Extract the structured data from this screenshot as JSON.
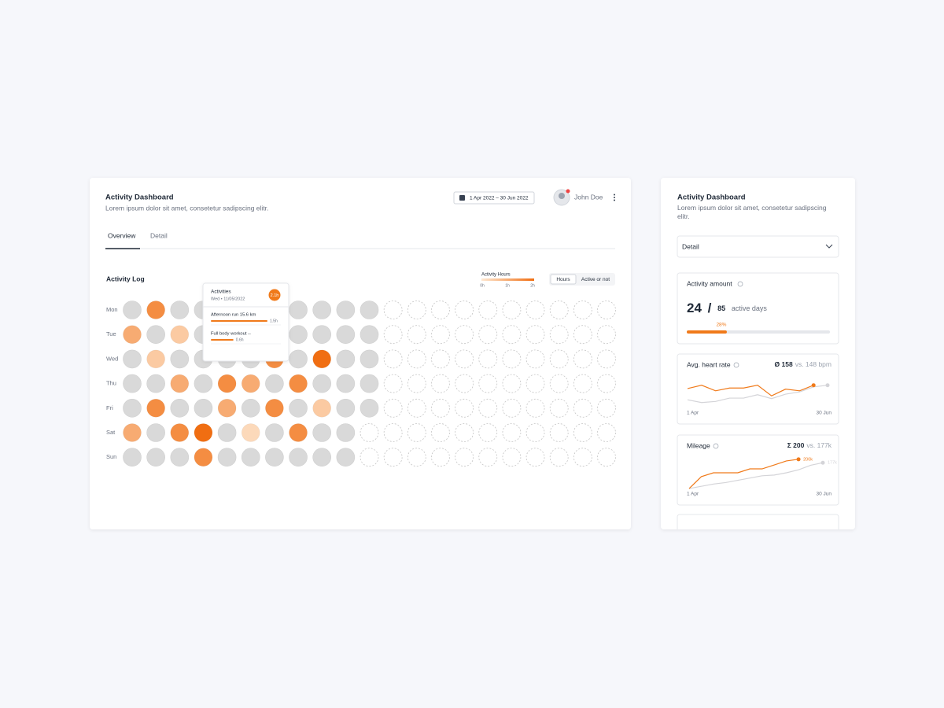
{
  "main": {
    "title": "Activity Dashboard",
    "subtitle": "Lorem ipsum dolor sit amet, consetetur sadipscing elitr.",
    "date_range": "1 Apr 2022 – 30 Jun 2022",
    "user": "John Doe",
    "tabs": [
      "Overview",
      "Detail"
    ],
    "activity_log": {
      "title": "Activity Log",
      "legend": {
        "title": "Activity Hours",
        "ticks": [
          {
            "value": 0,
            "label": "0h"
          },
          {
            "value": 1,
            "label": "1h"
          },
          {
            "value": 2,
            "label": "2h"
          }
        ]
      },
      "toggle": [
        "Hours",
        "Active or not"
      ],
      "days": [
        "Mon",
        "Tue",
        "Wed",
        "Thu",
        "Fri",
        "Sat",
        "Sun"
      ],
      "hours": [
        [
          0,
          1.5,
          0,
          0,
          0,
          0,
          0,
          0,
          0,
          0,
          0,
          null,
          null,
          null,
          null,
          null,
          null,
          null,
          null,
          null,
          null
        ],
        [
          1,
          0,
          0.5,
          0,
          0,
          0,
          0,
          0,
          0,
          0,
          0,
          null,
          null,
          null,
          null,
          null,
          null,
          null,
          null,
          null,
          null
        ],
        [
          0,
          0.5,
          0,
          0,
          0,
          0,
          1.5,
          0,
          2,
          0,
          0,
          null,
          null,
          null,
          null,
          null,
          null,
          null,
          null,
          null,
          null
        ],
        [
          0,
          0,
          1,
          0,
          1.5,
          1,
          0,
          1.5,
          0,
          0,
          0,
          null,
          null,
          null,
          null,
          null,
          null,
          null,
          null,
          null,
          null
        ],
        [
          0,
          1.5,
          0,
          0,
          1,
          0,
          1.5,
          0,
          0.5,
          0,
          0,
          null,
          null,
          null,
          null,
          null,
          null,
          null,
          null,
          null,
          null
        ],
        [
          1,
          0,
          1.5,
          2,
          0,
          0.25,
          0,
          1.5,
          0,
          0,
          null,
          null,
          null,
          null,
          null,
          null,
          null,
          null,
          null,
          null,
          null
        ],
        [
          0,
          0,
          0,
          1.5,
          0,
          0,
          0,
          0,
          0,
          0,
          null,
          null,
          null,
          null,
          null,
          null,
          null,
          null,
          null,
          null,
          null
        ]
      ],
      "tooltip": {
        "title": "Activities",
        "date": "Wed • 11/05/2022",
        "total": 2.1,
        "total_label": "2.1h",
        "items": [
          {
            "name": "Afternoon run 15.6 km",
            "hours": 1.5,
            "label": "1.5h"
          },
          {
            "name": "Full body workout --",
            "hours": 0.6,
            "label": "0.6h"
          }
        ]
      }
    }
  },
  "right": {
    "title": "Activity Dashboard",
    "subtitle": "Lorem ipsum dolor sit amet, consetetur sadipscing elitr.",
    "select": "Detail",
    "activity_amount": {
      "title": "Activity amount",
      "value": 24,
      "separator": "/",
      "total": 85,
      "unit": "active days",
      "percent": 28,
      "percent_label": "28%"
    },
    "heart_rate": {
      "title": "Avg. heart rate",
      "value_label": "Ø 158",
      "compare_label": "vs. 148 bpm",
      "x_start": "1 Apr",
      "x_end": "30 Jun",
      "ylim": [
        130,
        175
      ],
      "series": [
        {
          "color": "#f07a1a",
          "values": [
            161,
            167,
            157,
            162,
            162,
            167,
            148,
            160,
            157,
            167
          ]
        },
        {
          "color": "#d4d4d8",
          "values": [
            141,
            136,
            138,
            144,
            144,
            150,
            143,
            151,
            155,
            164,
            167
          ]
        }
      ]
    },
    "mileage": {
      "title": "Mileage",
      "value_label": "Σ 200",
      "compare_label": "vs. 177k",
      "x_start": "1 Apr",
      "x_end": "30 Jun",
      "ylim": [
        0,
        220
      ],
      "series": [
        {
          "color": "#f07a1a",
          "end_label": "200k",
          "values": [
            5,
            84,
            110,
            110,
            110,
            136,
            136,
            162,
            189,
            200
          ]
        },
        {
          "color": "#d4d4d8",
          "end_label": "177k",
          "values": [
            5,
            20,
            35,
            45,
            60,
            75,
            90,
            95,
            110,
            130,
            160,
            177
          ]
        }
      ]
    }
  }
}
